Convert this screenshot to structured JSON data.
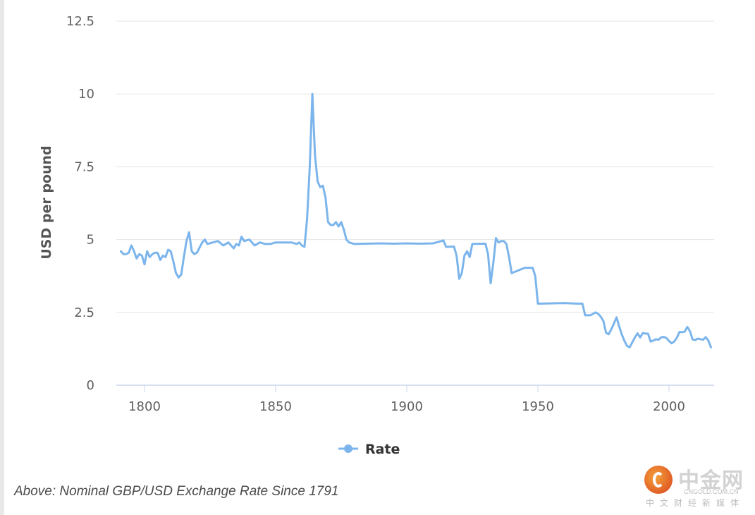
{
  "caption": "Above: Nominal GBP/USD Exchange Rate Since 1791",
  "watermark": {
    "name": "中金网",
    "domain": "CNGOLD.COM.CN",
    "tagline": "中文财经新媒体"
  },
  "colors": {
    "series": "#7cb5ec",
    "grid": "#e6e6e6",
    "axis": "#ccd6eb"
  },
  "chart_data": {
    "type": "line",
    "title": "",
    "xlabel": "",
    "ylabel": "USD per pound",
    "xlim": [
      1791,
      2016
    ],
    "ylim": [
      0,
      12.5
    ],
    "x_ticks": [
      1800,
      1850,
      1900,
      1950,
      2000
    ],
    "y_ticks": [
      0,
      2.5,
      5,
      7.5,
      10,
      12.5
    ],
    "y_tick_labels": [
      "0",
      "2.5",
      "5",
      "7.5",
      "10",
      "12.5"
    ],
    "grid": true,
    "legend": "bottom-center",
    "series": [
      {
        "name": "Rate",
        "x": [
          1791,
          1792,
          1793,
          1794,
          1795,
          1796,
          1797,
          1798,
          1799,
          1800,
          1801,
          1802,
          1803,
          1804,
          1805,
          1806,
          1807,
          1808,
          1809,
          1810,
          1811,
          1812,
          1813,
          1814,
          1815,
          1816,
          1817,
          1818,
          1819,
          1820,
          1822,
          1823,
          1824,
          1826,
          1828,
          1830,
          1832,
          1834,
          1835,
          1836,
          1837,
          1838,
          1840,
          1842,
          1844,
          1846,
          1848,
          1850,
          1852,
          1854,
          1856,
          1858,
          1859,
          1860,
          1861,
          1862,
          1863,
          1864,
          1865,
          1866,
          1867,
          1868,
          1869,
          1870,
          1871,
          1872,
          1873,
          1874,
          1875,
          1876,
          1877,
          1878,
          1880,
          1885,
          1890,
          1895,
          1900,
          1905,
          1910,
          1914,
          1915,
          1918,
          1919,
          1920,
          1921,
          1922,
          1923,
          1924,
          1925,
          1930,
          1931,
          1932,
          1933,
          1934,
          1935,
          1936,
          1937,
          1938,
          1939,
          1940,
          1945,
          1946,
          1948,
          1949,
          1950,
          1951,
          1960,
          1965,
          1967,
          1968,
          1970,
          1971,
          1972,
          1973,
          1974,
          1975,
          1976,
          1977,
          1978,
          1979,
          1980,
          1981,
          1982,
          1983,
          1984,
          1985,
          1986,
          1987,
          1988,
          1989,
          1990,
          1991,
          1992,
          1993,
          1994,
          1995,
          1996,
          1997,
          1998,
          1999,
          2000,
          2001,
          2002,
          2003,
          2004,
          2005,
          2006,
          2007,
          2008,
          2009,
          2010,
          2011,
          2012,
          2013,
          2014,
          2015,
          2016
        ],
        "y": [
          4.6,
          4.5,
          4.5,
          4.55,
          4.8,
          4.6,
          4.35,
          4.5,
          4.45,
          4.15,
          4.6,
          4.4,
          4.5,
          4.55,
          4.55,
          4.3,
          4.45,
          4.4,
          4.65,
          4.6,
          4.25,
          3.85,
          3.7,
          3.8,
          4.4,
          4.95,
          5.25,
          4.6,
          4.5,
          4.55,
          4.9,
          5.0,
          4.85,
          4.9,
          4.95,
          4.8,
          4.9,
          4.7,
          4.85,
          4.8,
          5.1,
          4.95,
          5.0,
          4.8,
          4.9,
          4.85,
          4.85,
          4.9,
          4.9,
          4.9,
          4.9,
          4.85,
          4.9,
          4.8,
          4.75,
          5.7,
          7.5,
          10.0,
          7.9,
          7.0,
          6.8,
          6.85,
          6.45,
          5.6,
          5.5,
          5.5,
          5.6,
          5.45,
          5.6,
          5.35,
          5.0,
          4.9,
          4.85,
          4.86,
          4.87,
          4.86,
          4.87,
          4.86,
          4.87,
          4.97,
          4.75,
          4.76,
          4.45,
          3.65,
          3.85,
          4.45,
          4.6,
          4.4,
          4.85,
          4.86,
          4.5,
          3.5,
          4.2,
          5.05,
          4.9,
          4.95,
          4.95,
          4.85,
          4.4,
          3.85,
          4.03,
          4.03,
          4.03,
          3.75,
          2.8,
          2.8,
          2.82,
          2.8,
          2.8,
          2.4,
          2.4,
          2.45,
          2.5,
          2.45,
          2.35,
          2.2,
          1.8,
          1.75,
          1.92,
          2.12,
          2.33,
          2.02,
          1.75,
          1.52,
          1.35,
          1.3,
          1.47,
          1.64,
          1.78,
          1.64,
          1.79,
          1.77,
          1.77,
          1.5,
          1.53,
          1.58,
          1.56,
          1.64,
          1.66,
          1.62,
          1.52,
          1.44,
          1.5,
          1.63,
          1.83,
          1.82,
          1.84,
          2.0,
          1.85,
          1.57,
          1.55,
          1.6,
          1.58,
          1.56,
          1.65,
          1.53,
          1.3
        ]
      }
    ]
  }
}
